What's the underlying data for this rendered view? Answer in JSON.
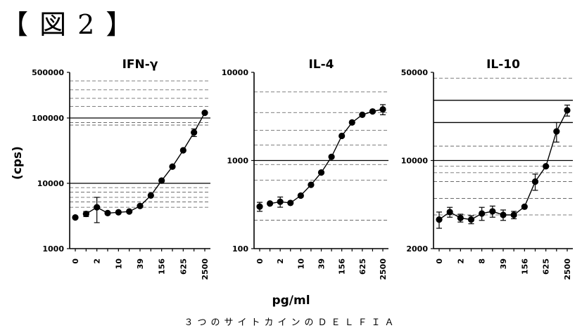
{
  "figure_label": "【 図 2 】",
  "caption": "３つのサイトカインのＤＥＬＦＩＡ",
  "shared_x_label": "pg/ml",
  "shared_y_label": "(cps)",
  "colors": {
    "ink": "#000000",
    "grid": "#555555"
  },
  "chart_data": [
    {
      "type": "line",
      "title": "IFN-γ",
      "yscale": "log",
      "ylim": [
        1000,
        500000
      ],
      "y_ticks": [
        1000,
        10000,
        100000,
        500000
      ],
      "y_tick_labels": [
        "1000",
        "10000",
        "100000",
        "500000"
      ],
      "x_tick_labels": [
        "0",
        "2",
        "10",
        "39",
        "156",
        "625",
        "2500"
      ],
      "points": [
        {
          "x": 0,
          "y": 3000
        },
        {
          "x": 1,
          "y": 3400,
          "err": 300
        },
        {
          "x": 2,
          "y": 4300,
          "err": 1800
        },
        {
          "x": 3,
          "y": 3500
        },
        {
          "x": 4,
          "y": 3600
        },
        {
          "x": 5,
          "y": 3700
        },
        {
          "x": 6,
          "y": 4500
        },
        {
          "x": 7,
          "y": 6500
        },
        {
          "x": 8,
          "y": 11000
        },
        {
          "x": 9,
          "y": 18000
        },
        {
          "x": 10,
          "y": 32000
        },
        {
          "x": 11,
          "y": 60000,
          "err": 8000
        },
        {
          "x": 12,
          "y": 120000
        }
      ],
      "curve_start_index": 1,
      "ref_lines": [
        4300,
        5200,
        6100,
        7300,
        8600,
        10000,
        78000,
        85000,
        100000,
        150000,
        200000,
        270000,
        370000
      ],
      "ref_dark": [
        10000,
        100000
      ]
    },
    {
      "type": "line",
      "title": "IL-4",
      "yscale": "log",
      "ylim": [
        100,
        10000
      ],
      "y_ticks": [
        100,
        1000,
        10000
      ],
      "y_tick_labels": [
        "100",
        "1000",
        "10000"
      ],
      "x_tick_labels": [
        "0",
        "2",
        "10",
        "39",
        "156",
        "625",
        "2500"
      ],
      "points": [
        {
          "x": 0,
          "y": 300,
          "err": 35
        },
        {
          "x": 1,
          "y": 325
        },
        {
          "x": 2,
          "y": 340,
          "err": 45
        },
        {
          "x": 3,
          "y": 330
        },
        {
          "x": 4,
          "y": 400
        },
        {
          "x": 5,
          "y": 530
        },
        {
          "x": 6,
          "y": 730
        },
        {
          "x": 7,
          "y": 1100
        },
        {
          "x": 8,
          "y": 1900
        },
        {
          "x": 9,
          "y": 2700
        },
        {
          "x": 10,
          "y": 3300
        },
        {
          "x": 11,
          "y": 3600
        },
        {
          "x": 12,
          "y": 3800,
          "err": 500
        }
      ],
      "curve_start_index": 1,
      "ref_lines": [
        210,
        600,
        900,
        1000,
        1500,
        2200,
        3500,
        6000
      ],
      "ref_dark": [
        1000
      ]
    },
    {
      "type": "line",
      "title": "IL-10",
      "yscale": "log",
      "ylim": [
        2000,
        50000
      ],
      "y_ticks": [
        2000,
        10000,
        50000
      ],
      "y_tick_labels": [
        "2000",
        "10000",
        "50000"
      ],
      "x_tick_labels": [
        "0",
        "2",
        "8",
        "39",
        "156",
        "625",
        "2500"
      ],
      "points": [
        {
          "x": 0,
          "y": 3400,
          "err": 500
        },
        {
          "x": 1,
          "y": 3900,
          "err": 350
        },
        {
          "x": 2,
          "y": 3500,
          "err": 250
        },
        {
          "x": 3,
          "y": 3400,
          "err": 250
        },
        {
          "x": 4,
          "y": 3800,
          "err": 450
        },
        {
          "x": 5,
          "y": 3950,
          "err": 400
        },
        {
          "x": 6,
          "y": 3700,
          "err": 350
        },
        {
          "x": 7,
          "y": 3700,
          "err": 250
        },
        {
          "x": 8,
          "y": 4300
        },
        {
          "x": 9,
          "y": 6800,
          "err": 1000
        },
        {
          "x": 10,
          "y": 9000
        },
        {
          "x": 11,
          "y": 17000,
          "err": 3000
        },
        {
          "x": 12,
          "y": 25000,
          "err": 2500
        }
      ],
      "curve_start_index": 0,
      "ref_lines": [
        3700,
        5000,
        6800,
        8000,
        9000,
        10000,
        13000,
        20000,
        30000,
        45000
      ],
      "ref_dark": [
        10000,
        20000,
        30000
      ]
    }
  ]
}
